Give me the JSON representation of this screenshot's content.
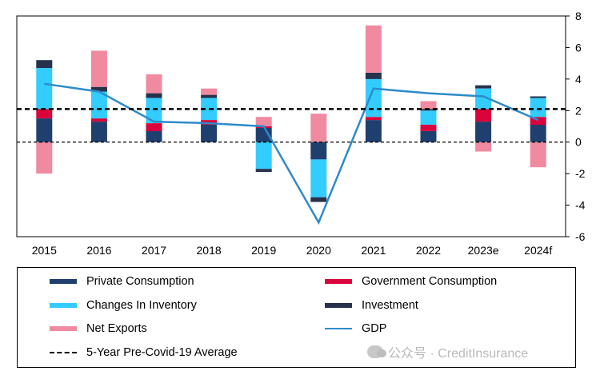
{
  "chart_data": {
    "type": "bar",
    "stacked": true,
    "categories": [
      "2015",
      "2016",
      "2017",
      "2018",
      "2019",
      "2020",
      "2021",
      "2022",
      "2023e",
      "2024f"
    ],
    "ylim": [
      -6,
      8
    ],
    "yticks": [
      -6,
      -4,
      -2,
      0,
      2,
      4,
      6,
      8
    ],
    "y_axis_side": "right",
    "series": [
      {
        "name": "Private Consumption",
        "color": "#1f3f6e",
        "values": [
          1.5,
          1.3,
          0.7,
          1.1,
          0.9,
          -1.1,
          1.4,
          0.7,
          1.3,
          1.1
        ]
      },
      {
        "name": "Government Consumption",
        "color": "#d9043b",
        "values": [
          0.6,
          0.2,
          0.5,
          0.3,
          0.1,
          0.0,
          0.2,
          0.4,
          0.8,
          0.5
        ]
      },
      {
        "name": "Changes In Inventory",
        "color": "#33ccff",
        "values": [
          2.6,
          1.7,
          1.6,
          1.4,
          -1.7,
          -2.4,
          2.4,
          0.9,
          1.3,
          1.2
        ]
      },
      {
        "name": "Investment",
        "color": "#26314b",
        "values": [
          0.5,
          0.3,
          0.3,
          0.2,
          -0.2,
          -0.3,
          0.4,
          0.1,
          0.2,
          0.1
        ]
      },
      {
        "name": "Net Exports",
        "color": "#f08aa1",
        "values": [
          -2.0,
          2.3,
          1.2,
          0.4,
          0.6,
          1.8,
          3.0,
          0.5,
          -0.6,
          -1.6
        ]
      }
    ],
    "lines": [
      {
        "name": "GDP",
        "color": "#2e8bc9",
        "style": "solid",
        "values": [
          3.7,
          3.2,
          1.3,
          1.2,
          1.0,
          -5.1,
          3.4,
          3.1,
          2.9,
          1.4
        ]
      },
      {
        "name": "5-Year Pre-Covid-19 Average",
        "color": "#000000",
        "style": "dashed",
        "value": 2.1
      }
    ],
    "grid": false,
    "legend_position": "bottom"
  },
  "legend": {
    "items": [
      {
        "label": "Private Consumption",
        "color": "#1f3f6e",
        "kind": "bar"
      },
      {
        "label": "Government Consumption",
        "color": "#d9043b",
        "kind": "bar"
      },
      {
        "label": "Changes In Inventory",
        "color": "#33ccff",
        "kind": "bar"
      },
      {
        "label": "Investment",
        "color": "#26314b",
        "kind": "bar"
      },
      {
        "label": "Net Exports",
        "color": "#f08aa1",
        "kind": "bar"
      },
      {
        "label": "GDP",
        "color": "#2e8bc9",
        "kind": "line"
      },
      {
        "label": "5-Year Pre-Covid-19 Average",
        "color": "#000000",
        "kind": "dashed"
      }
    ]
  },
  "watermark": {
    "text": "公众号 · CreditInsurance",
    "icon": "wechat-icon"
  }
}
